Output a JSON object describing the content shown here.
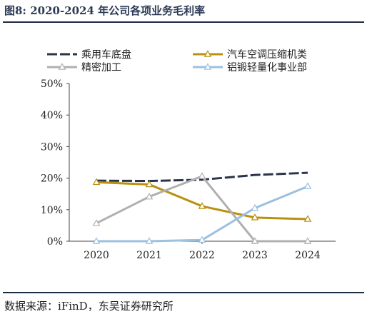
{
  "header": {
    "title": "图8:  2020-2024 年公司各项业务毛利率"
  },
  "footer": {
    "source": "数据来源：iFinD，东吴证券研究所"
  },
  "colors": {
    "乘用车底盘": "#2a3449",
    "汽车空调压缩机类": "#b8910e",
    "精密加工": "#b0b0b0",
    "铝锻轻量化事业部": "#9bc0e0"
  },
  "chart_data": {
    "type": "line",
    "title": "2020-2024 年公司各项业务毛利率",
    "x": [
      "2020",
      "2021",
      "2022",
      "2023",
      "2024"
    ],
    "yticks": [
      "0%",
      "10%",
      "20%",
      "30%",
      "40%",
      "50%"
    ],
    "ylim": [
      0,
      50
    ],
    "grid": false,
    "legend": "top",
    "series": [
      {
        "name": "乘用车底盘",
        "style": "dashed",
        "marker": "none",
        "values": [
          19.2,
          19.1,
          19.5,
          21.0,
          21.7
        ]
      },
      {
        "name": "汽车空调压缩机类",
        "style": "solid",
        "marker": "triangle",
        "values": [
          18.7,
          18.0,
          11.1,
          7.5,
          7.0
        ]
      },
      {
        "name": "精密加工",
        "style": "solid",
        "marker": "triangle",
        "values": [
          5.7,
          14.1,
          20.6,
          0,
          0
        ]
      },
      {
        "name": "铝锻轻量化事业部",
        "style": "solid",
        "marker": "triangle",
        "values": [
          0,
          0,
          0.4,
          10.5,
          17.4
        ]
      }
    ]
  }
}
